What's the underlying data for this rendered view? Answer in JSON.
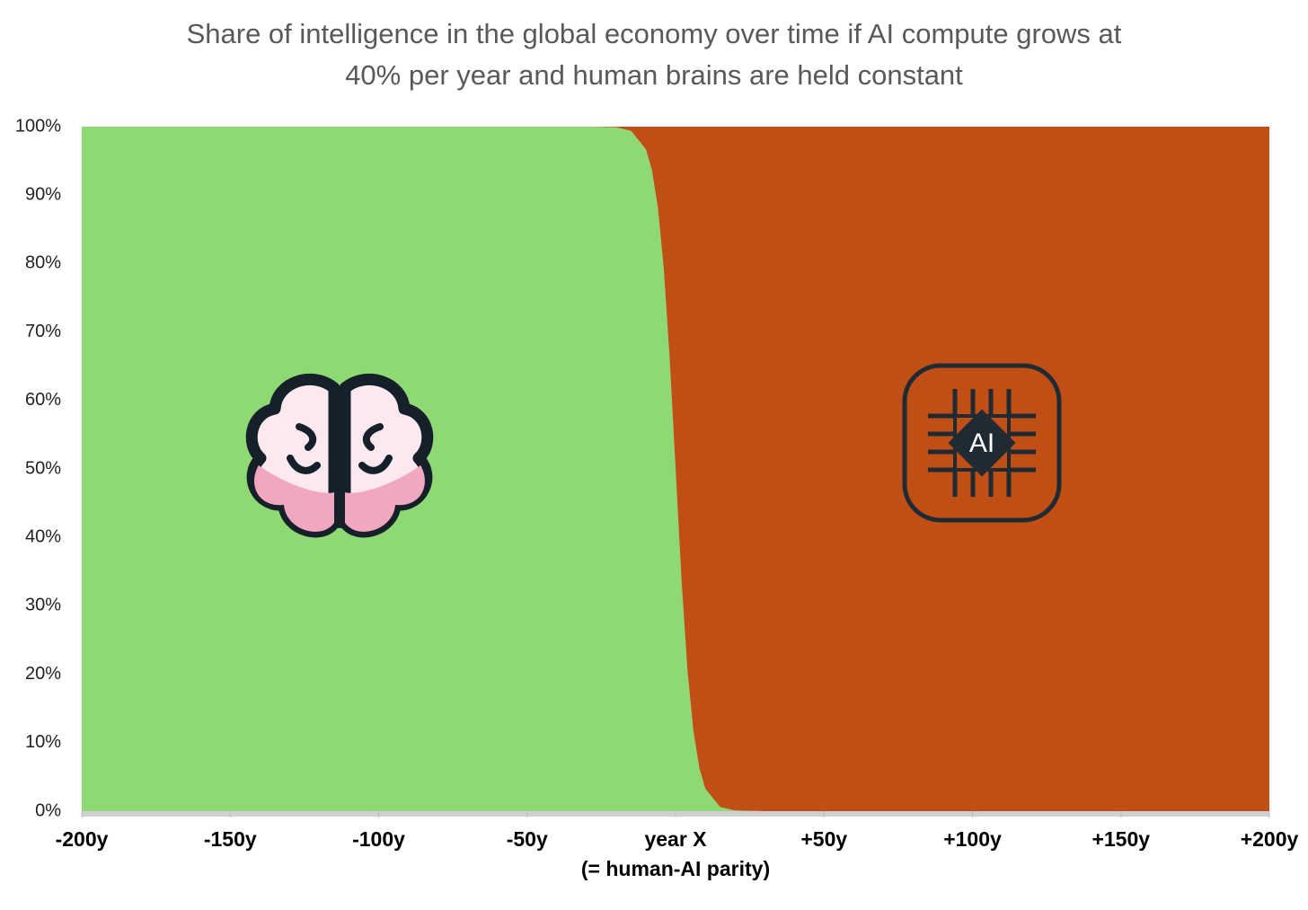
{
  "chart_data": {
    "type": "stacked_area",
    "title": [
      "Share of intelligence in the global economy over time if AI compute grows at",
      "40% per year and human brains are held constant"
    ],
    "x": [
      -200,
      -30,
      -20,
      -15,
      -10,
      -8,
      -6,
      -4,
      -2,
      0,
      2,
      4,
      6,
      8,
      10,
      15,
      20,
      30,
      200
    ],
    "series": [
      {
        "name": "Human brains",
        "color": "#8fd974",
        "values": [
          100,
          100,
          99.9,
          99.4,
          96.7,
          93.7,
          88.3,
          79.4,
          66.2,
          50,
          33.8,
          20.6,
          11.7,
          6.3,
          3.3,
          0.6,
          0.1,
          0,
          0
        ]
      },
      {
        "name": "AI compute",
        "color": "#bf4f14",
        "values": [
          0,
          0,
          0.1,
          0.6,
          3.3,
          6.3,
          11.7,
          20.6,
          33.8,
          50,
          66.2,
          79.4,
          88.3,
          93.7,
          96.7,
          99.4,
          99.9,
          100,
          100
        ]
      }
    ],
    "xlim": [
      -200,
      200
    ],
    "xticks": [
      {
        "value": -200,
        "label": "-200y"
      },
      {
        "value": -150,
        "label": "-150y"
      },
      {
        "value": -100,
        "label": "-100y"
      },
      {
        "value": -50,
        "label": "-50y"
      },
      {
        "value": 0,
        "label": "year X"
      },
      {
        "value": 50,
        "label": "+50y"
      },
      {
        "value": 100,
        "label": "+100y"
      },
      {
        "value": 150,
        "label": "+150y"
      },
      {
        "value": 200,
        "label": "+200y"
      }
    ],
    "x_annotation": "(= human-AI parity)",
    "ylim": [
      0,
      100
    ],
    "yticks": [
      {
        "value": 0,
        "label": "0%"
      },
      {
        "value": 10,
        "label": "10%"
      },
      {
        "value": 20,
        "label": "20%"
      },
      {
        "value": 30,
        "label": "30%"
      },
      {
        "value": 40,
        "label": "40%"
      },
      {
        "value": 50,
        "label": "50%"
      },
      {
        "value": 60,
        "label": "60%"
      },
      {
        "value": 70,
        "label": "70%"
      },
      {
        "value": 80,
        "label": "80%"
      },
      {
        "value": 90,
        "label": "90%"
      },
      {
        "value": 100,
        "label": "100%"
      }
    ],
    "chip_label": "AI"
  }
}
